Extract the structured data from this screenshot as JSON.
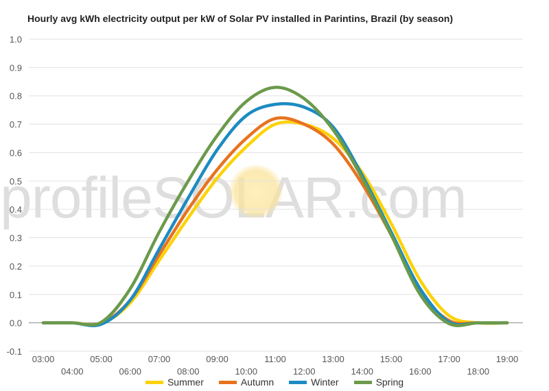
{
  "chart_data": {
    "type": "line",
    "title": "Hourly avg kWh electricity output per kW of Solar PV installed in Parintins, Brazil (by season)",
    "watermark": "profileSOLAR.com",
    "x": [
      "03:00",
      "04:00",
      "05:00",
      "06:00",
      "07:00",
      "08:00",
      "09:00",
      "10:00",
      "11:00",
      "12:00",
      "13:00",
      "14:00",
      "15:00",
      "16:00",
      "17:00",
      "18:00",
      "19:00"
    ],
    "ylim": [
      -0.1,
      1.0
    ],
    "yticks": [
      "-0.1",
      "0.0",
      "0.1",
      "0.2",
      "0.3",
      "0.4",
      "0.5",
      "0.6",
      "0.7",
      "0.8",
      "0.9",
      "1.0"
    ],
    "grid": true,
    "legend_position": "bottom",
    "series": [
      {
        "name": "Summer",
        "color": "#fcd20a",
        "values": [
          0,
          0,
          -0.002,
          0.07,
          0.22,
          0.37,
          0.51,
          0.62,
          0.7,
          0.7,
          0.65,
          0.53,
          0.35,
          0.15,
          0.025,
          0,
          0
        ]
      },
      {
        "name": "Autumn",
        "color": "#e8731f",
        "values": [
          0,
          0,
          -0.002,
          0.08,
          0.24,
          0.4,
          0.54,
          0.65,
          0.72,
          0.7,
          0.63,
          0.49,
          0.31,
          0.11,
          0.008,
          0,
          0
        ]
      },
      {
        "name": "Winter",
        "color": "#1c8bc2",
        "values": [
          0,
          0,
          -0.005,
          0.08,
          0.26,
          0.44,
          0.61,
          0.73,
          0.77,
          0.76,
          0.69,
          0.52,
          0.32,
          0.12,
          0.003,
          0,
          0
        ]
      },
      {
        "name": "Spring",
        "color": "#6b9a4b",
        "values": [
          0,
          0,
          0.002,
          0.12,
          0.32,
          0.5,
          0.66,
          0.78,
          0.83,
          0.79,
          0.68,
          0.51,
          0.31,
          0.1,
          -0.003,
          0,
          0
        ]
      }
    ]
  }
}
